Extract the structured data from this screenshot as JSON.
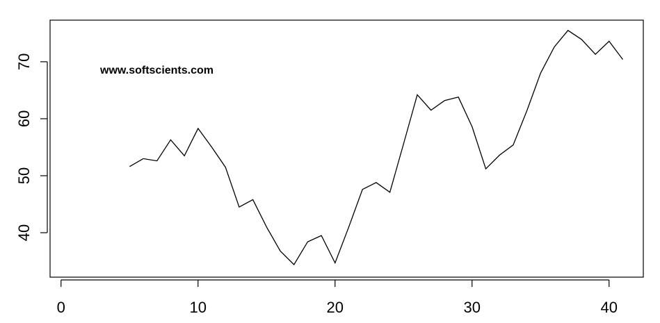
{
  "chart_data": {
    "type": "line",
    "title": "",
    "xlabel": "",
    "ylabel": "",
    "annotation": "www.softscients.com",
    "xlim": [
      -0.8,
      42.5
    ],
    "ylim": [
      32.2,
      77.3
    ],
    "x_ticks": [
      0,
      10,
      20,
      30,
      40
    ],
    "y_ticks": [
      40,
      50,
      60,
      70
    ],
    "x_tick_labels": [
      "0",
      "10",
      "20",
      "30",
      "40"
    ],
    "y_tick_labels": [
      "40",
      "50",
      "60",
      "70"
    ],
    "grid": false,
    "legend": "none",
    "series": [
      {
        "color": "#000000",
        "x": [
          5,
          6,
          7,
          8,
          9,
          10,
          11,
          12,
          13,
          14,
          15,
          16,
          17,
          18,
          19,
          20,
          21,
          22,
          23,
          24,
          25,
          26,
          27,
          28,
          29,
          30,
          31,
          32,
          33,
          34,
          35,
          36,
          37,
          38,
          39,
          40,
          41
        ],
        "values": [
          51.6,
          53.0,
          52.6,
          56.3,
          53.5,
          58.3,
          55.0,
          51.5,
          44.5,
          45.8,
          41.0,
          36.8,
          34.4,
          38.4,
          39.5,
          34.7,
          41.0,
          47.6,
          48.8,
          47.1,
          55.6,
          64.2,
          61.5,
          63.2,
          63.8,
          58.6,
          51.2,
          53.6,
          55.4,
          61.4,
          68.0,
          72.6,
          75.5,
          73.9,
          71.3,
          73.6,
          70.4
        ]
      }
    ]
  }
}
